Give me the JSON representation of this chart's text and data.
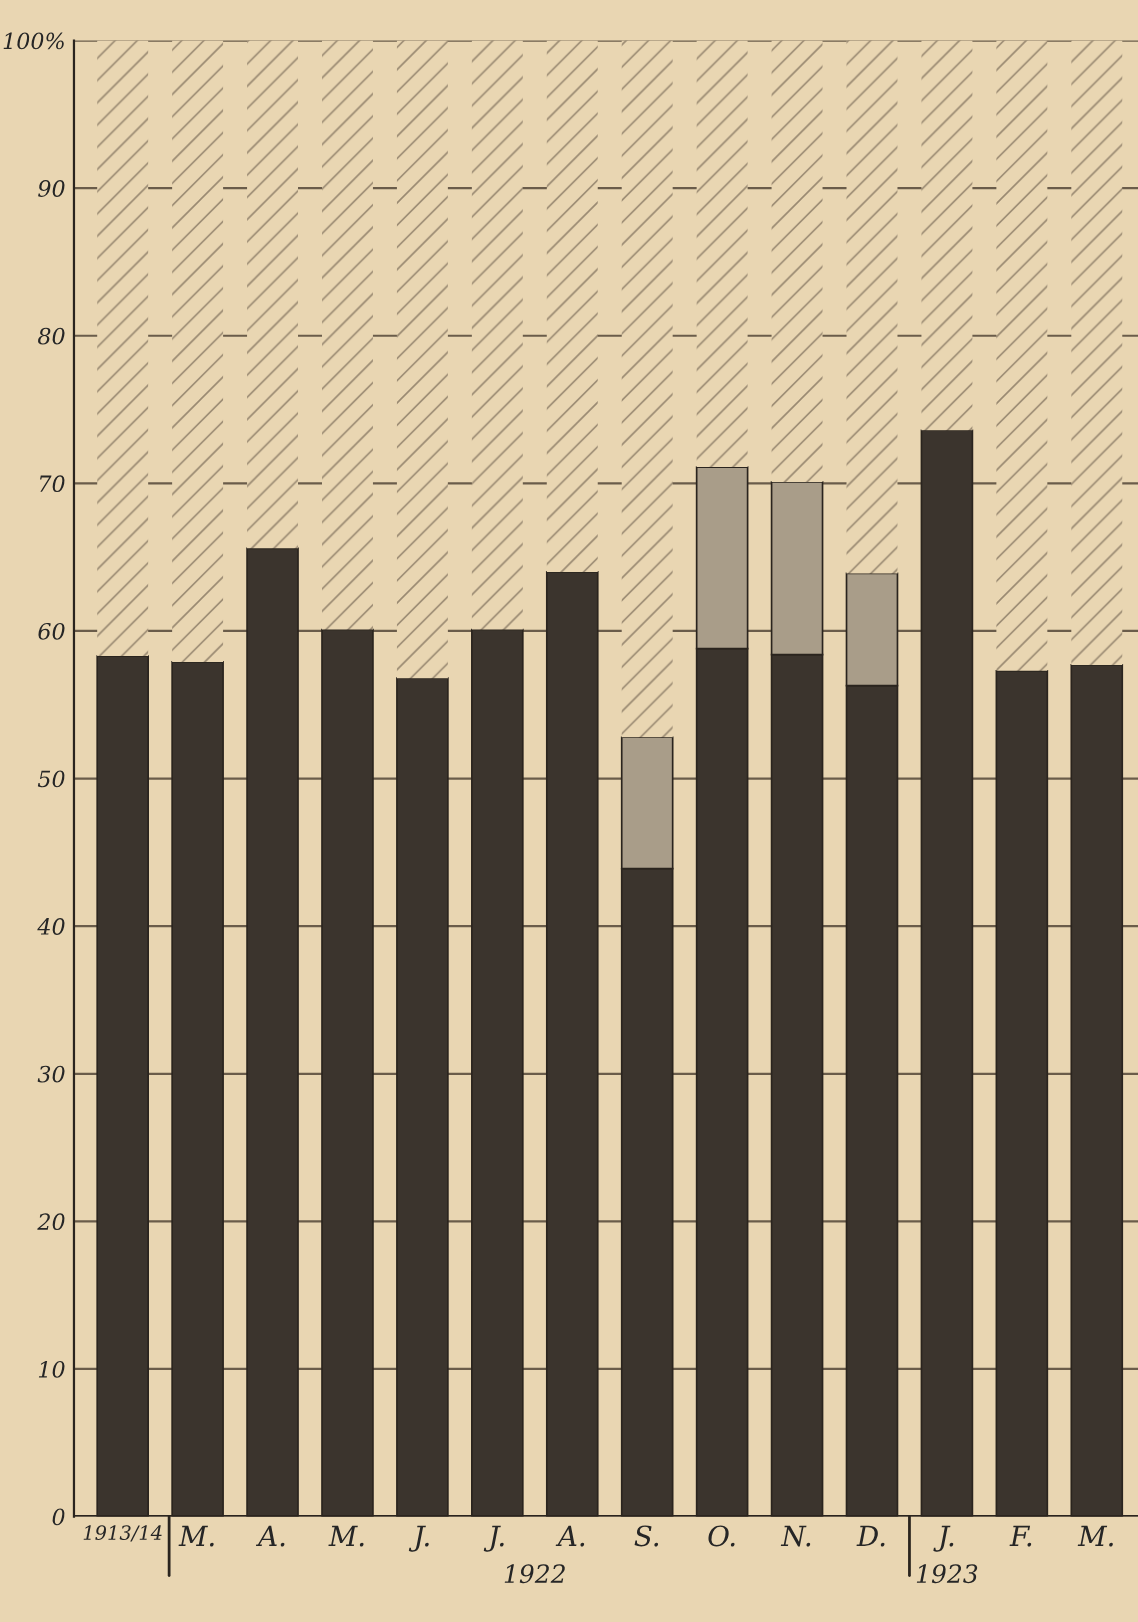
{
  "chart_data": {
    "type": "bar",
    "stacked": true,
    "categories": [
      "1913/14",
      "M.",
      "A.",
      "M.",
      "J.",
      "J.",
      "A.",
      "S.",
      "O.",
      "N.",
      "D.",
      "J.",
      "F.",
      "M."
    ],
    "series": [
      {
        "color": "#3b342d",
        "values": [
          58.3,
          57.9,
          65.6,
          60.1,
          56.8,
          60.1,
          64.0,
          43.9,
          58.8,
          58.4,
          56.3,
          73.6,
          57.3,
          57.7
        ]
      },
      {
        "color": "#a99d89",
        "values": [
          null,
          null,
          null,
          null,
          null,
          null,
          null,
          8.9,
          12.3,
          11.7,
          7.6,
          null,
          null,
          null
        ]
      },
      {
        "color": "#e9d6b2",
        "values": [
          41.7,
          42.1,
          34.4,
          39.9,
          43.2,
          39.9,
          36.0,
          47.2,
          28.9,
          29.9,
          36.1,
          26.4,
          42.7,
          42.3
        ]
      }
    ],
    "ylim": [
      0,
      100
    ],
    "yticks": [
      0,
      10,
      20,
      30,
      40,
      50,
      60,
      70,
      80,
      90,
      {
        "value": 100,
        "label": "100%"
      }
    ],
    "grid": "y",
    "annotations": [
      "1922",
      "1923"
    ]
  }
}
